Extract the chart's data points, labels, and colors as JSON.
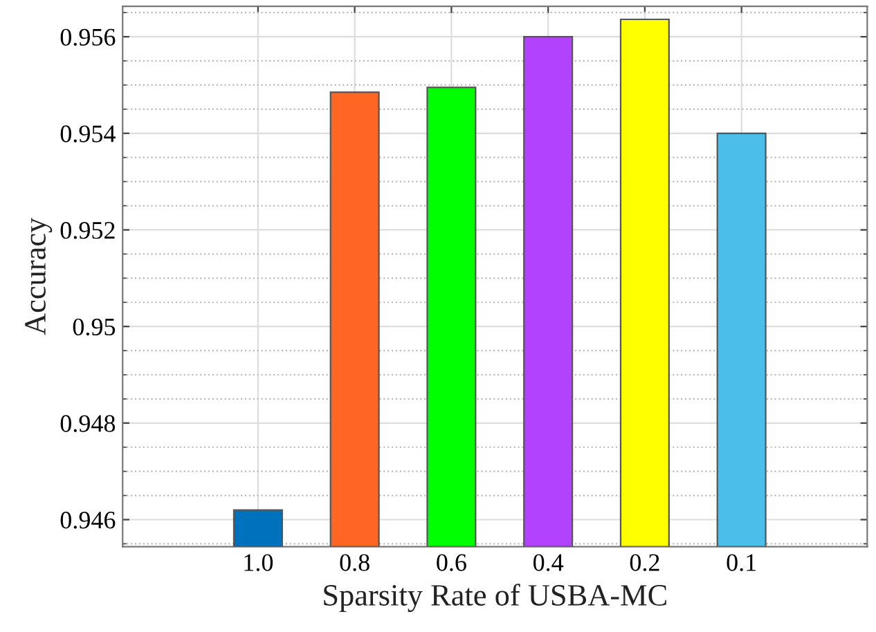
{
  "chart_data": {
    "type": "bar",
    "xlabel": "Sparsity Rate of USBA-MC",
    "ylabel": "Accuracy",
    "categories": [
      "1.0",
      "0.8",
      "0.6",
      "0.4",
      "0.2",
      "0.1"
    ],
    "values": [
      0.9462,
      0.95485,
      0.95495,
      0.956,
      0.95636,
      0.954
    ],
    "colors": [
      "#0072bd",
      "#ff6523",
      "#00ff00",
      "#b342ff",
      "#ffff00",
      "#4bbeea"
    ],
    "ylim": [
      0.94544,
      0.95663
    ],
    "yticks": [
      0.946,
      0.948,
      {
        "value": 0.95,
        "label": "0.95"
      },
      0.952,
      0.954,
      0.956
    ],
    "grid": true
  }
}
